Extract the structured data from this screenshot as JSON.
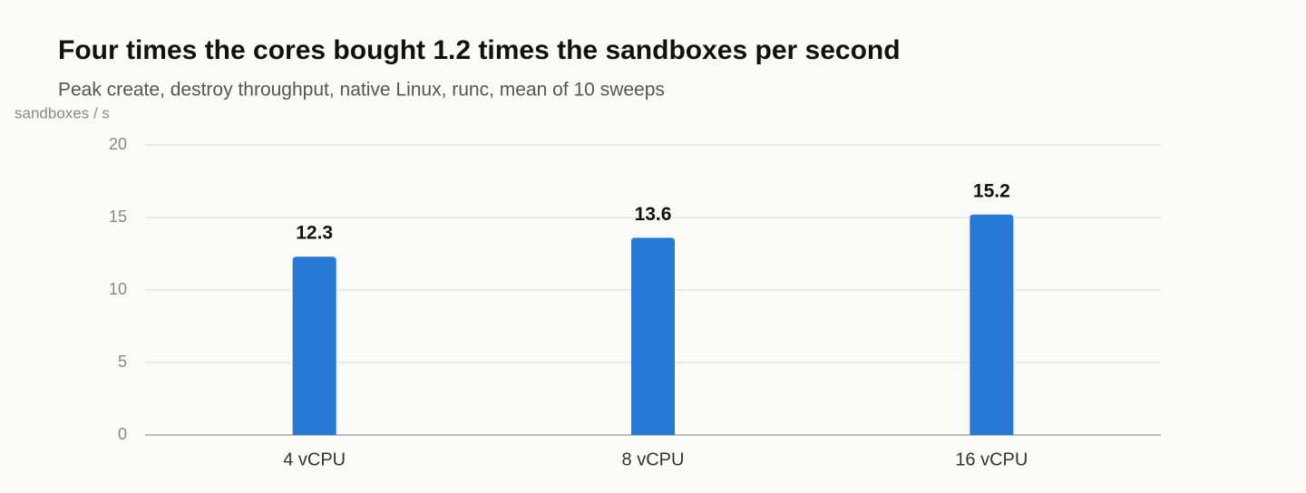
{
  "chart_data": {
    "type": "bar",
    "title": "Four times the cores bought 1.2 times the sandboxes per second",
    "subtitle": "Peak create, destroy throughput, native Linux, runc, mean of 10 sweeps",
    "y_label": "sandboxes / s",
    "categories": [
      "4 vCPU",
      "8 vCPU",
      "16 vCPU"
    ],
    "values": [
      12.3,
      13.6,
      15.2
    ],
    "color": "#2878d6",
    "ylim": [
      0,
      20
    ],
    "yticks": [
      0,
      5,
      10,
      15,
      20
    ],
    "grid": true
  }
}
